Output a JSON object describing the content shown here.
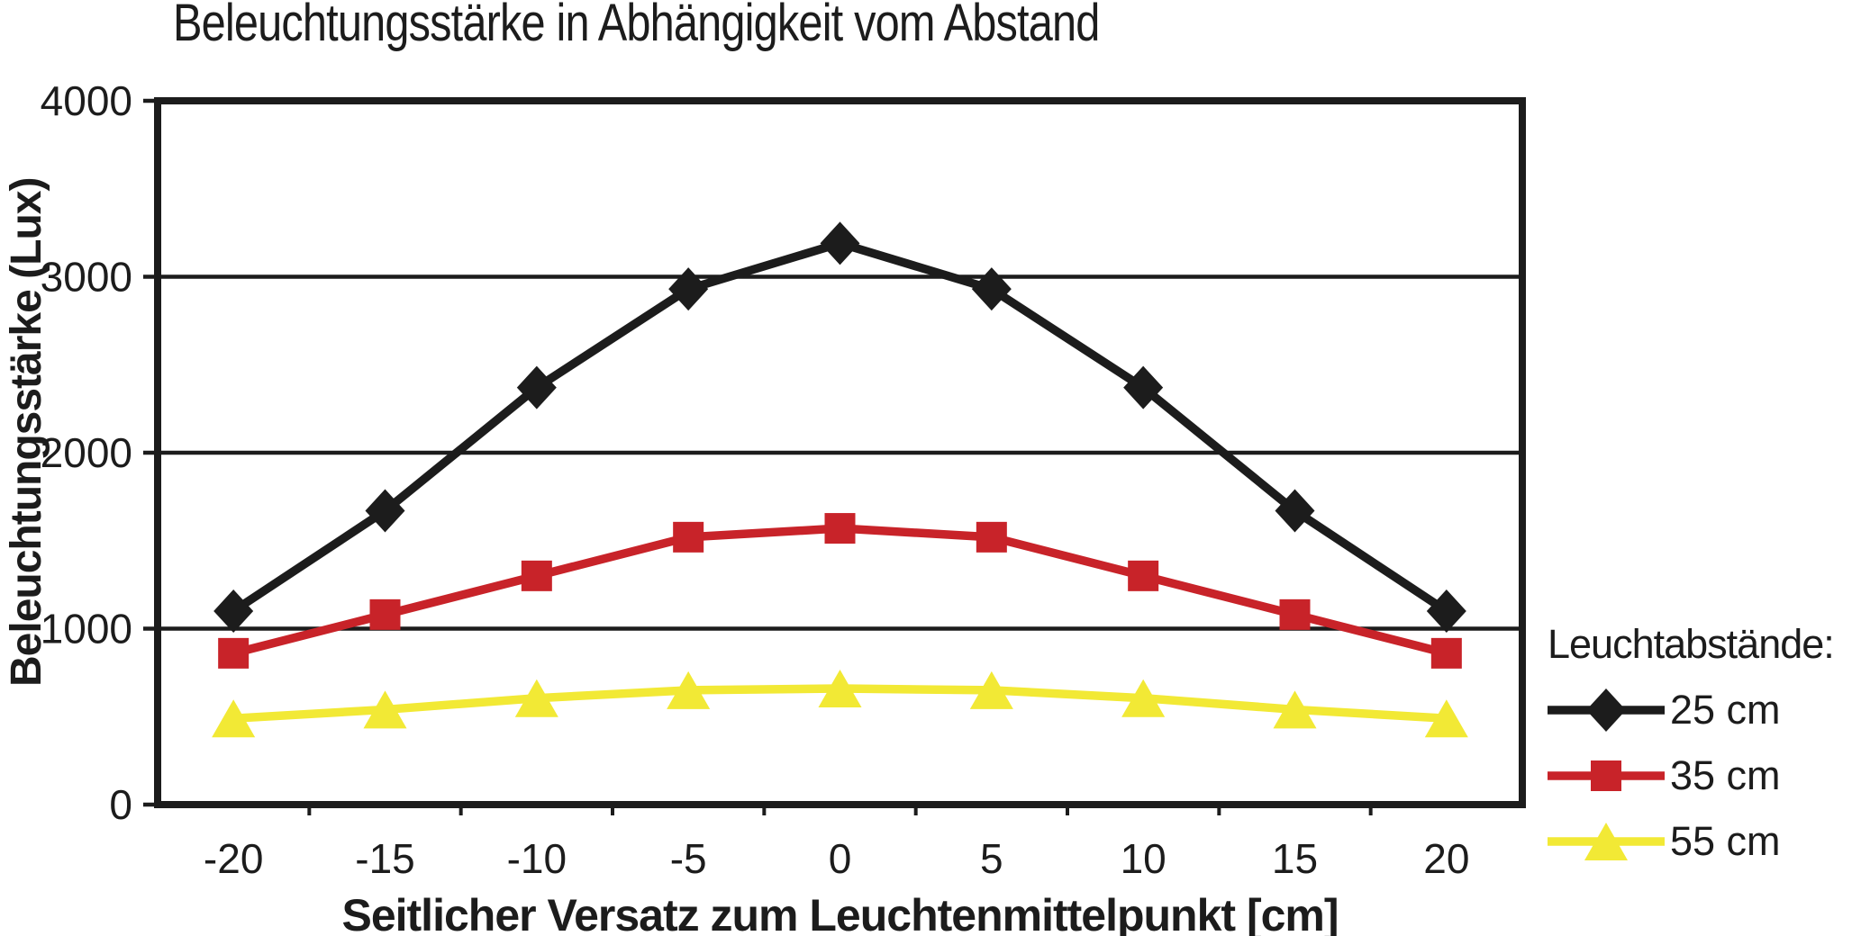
{
  "chart_data": {
    "type": "line",
    "title": "Beleuchtungsstärke in Abhängigkeit vom Abstand",
    "xlabel": "Seitlicher Versatz zum Leuchtenmittelpunkt [cm]",
    "ylabel": "Beleuchtungsstärke (Lux)",
    "categories": [
      "-20",
      "-15",
      "-10",
      "-5",
      "0",
      "5",
      "10",
      "15",
      "20"
    ],
    "y_ticks": [
      "0",
      "1000",
      "2000",
      "3000",
      "4000"
    ],
    "ylim": [
      0,
      4000
    ],
    "grid": "horizontal",
    "gridline_values": [
      1000,
      2000,
      3000
    ],
    "axis_color": "#1c1c1c",
    "background_color": "#ffffff",
    "legend_title": "Leuchtabstände:",
    "legend_position": "right-bottom",
    "series": [
      {
        "name": "25 cm",
        "marker": "diamond",
        "color": "#1c1c1c",
        "values": [
          1100,
          1670,
          2370,
          2930,
          3190,
          2930,
          2370,
          1670,
          1100
        ]
      },
      {
        "name": "35 cm",
        "marker": "square",
        "color": "#c82329",
        "values": [
          860,
          1080,
          1300,
          1520,
          1570,
          1520,
          1300,
          1080,
          860
        ]
      },
      {
        "name": "55 cm",
        "marker": "triangle",
        "color": "#f2e935",
        "values": [
          490,
          540,
          605,
          650,
          660,
          650,
          605,
          540,
          490
        ]
      }
    ]
  }
}
